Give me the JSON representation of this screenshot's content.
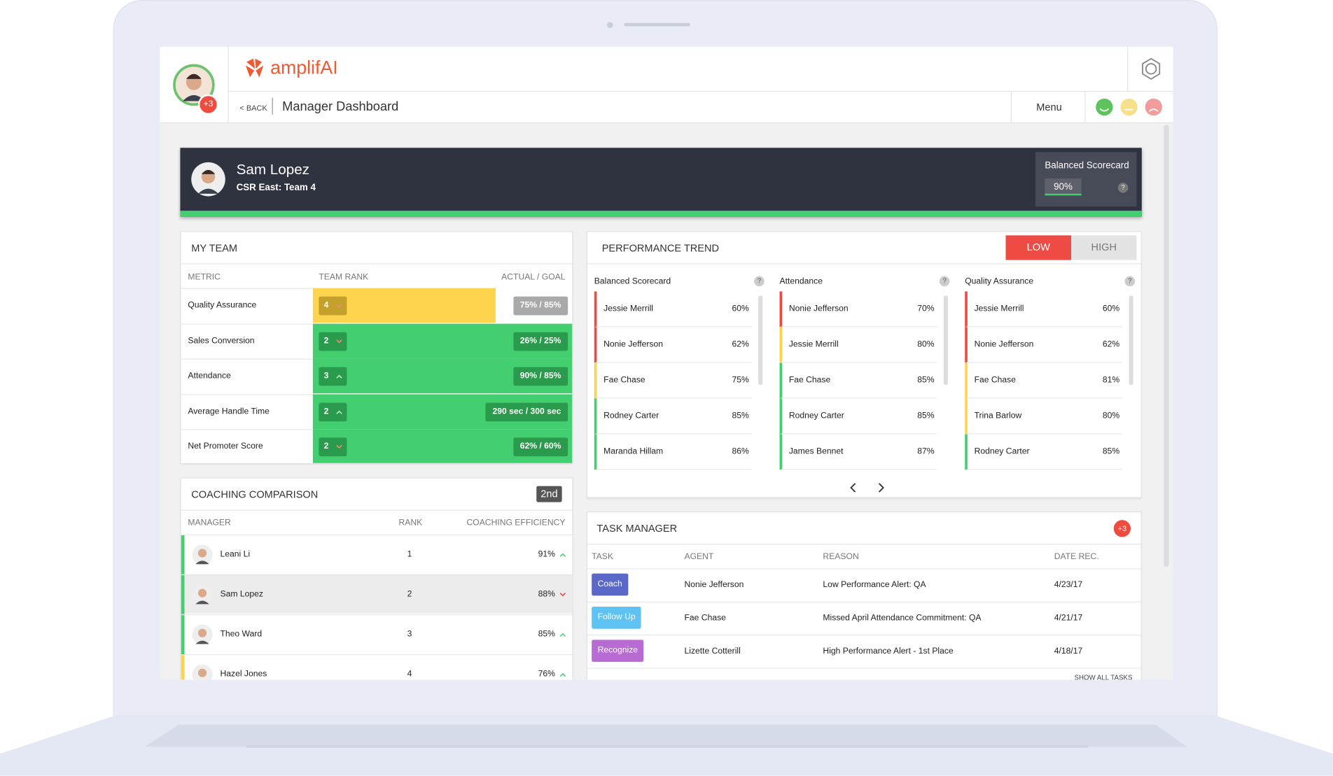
{
  "header": {
    "brand": "amplifAI",
    "badge": "+3",
    "back": "< BACK",
    "title": "Manager Dashboard",
    "menu": "Menu"
  },
  "profile": {
    "name": "Sam Lopez",
    "team": "CSR East: Team 4",
    "scorecard_label": "Balanced Scorecard",
    "scorecard_value": "90%",
    "help": "?"
  },
  "my_team": {
    "title": "MY TEAM",
    "columns": [
      "METRIC",
      "TEAM RANK",
      "ACTUAL / GOAL"
    ],
    "rows": [
      {
        "metric": "Quality Assurance",
        "rank": "4",
        "trend": "down",
        "value": "75% / 85%",
        "status": "yellow"
      },
      {
        "metric": "Sales Conversion",
        "rank": "2",
        "trend": "down",
        "value": "26% / 25%",
        "status": "green"
      },
      {
        "metric": "Attendance",
        "rank": "3",
        "trend": "up",
        "value": "90% / 85%",
        "status": "green"
      },
      {
        "metric": "Average Handle Time",
        "rank": "2",
        "trend": "up",
        "value": "290 sec / 300 sec",
        "status": "green"
      },
      {
        "metric": "Net Promoter Score",
        "rank": "2",
        "trend": "down",
        "value": "62% / 60%",
        "status": "green"
      }
    ]
  },
  "coaching": {
    "title": "COACHING COMPARISON",
    "badge": "2nd",
    "columns": [
      "MANAGER",
      "RANK",
      "COACHING EFFICIENCY"
    ],
    "rows": [
      {
        "manager": "Leani Li",
        "rank": "1",
        "efficiency": "91%",
        "trend": "up",
        "status": "green"
      },
      {
        "manager": "Sam Lopez",
        "rank": "2",
        "efficiency": "88%",
        "trend": "down",
        "status": "green"
      },
      {
        "manager": "Theo Ward",
        "rank": "3",
        "efficiency": "85%",
        "trend": "up",
        "status": "green"
      },
      {
        "manager": "Hazel Jones",
        "rank": "4",
        "efficiency": "76%",
        "trend": "up",
        "status": "yellow"
      }
    ]
  },
  "performance": {
    "title": "PERFORMANCE TREND",
    "toggle": [
      "LOW",
      "HIGH"
    ],
    "lists": [
      {
        "title": "Balanced Scorecard",
        "help": "?",
        "entries": [
          {
            "name": "Jessie Merrill",
            "value": "60%",
            "status": "red"
          },
          {
            "name": "Nonie Jefferson",
            "value": "62%",
            "status": "red"
          },
          {
            "name": "Fae Chase",
            "value": "75%",
            "status": "yellow"
          },
          {
            "name": "Rodney Carter",
            "value": "85%",
            "status": "green"
          },
          {
            "name": "Maranda Hillam",
            "value": "86%",
            "status": "green"
          }
        ]
      },
      {
        "title": "Attendance",
        "help": "?",
        "entries": [
          {
            "name": "Nonie Jefferson",
            "value": "70%",
            "status": "red"
          },
          {
            "name": "Jessie Merrill",
            "value": "80%",
            "status": "yellow"
          },
          {
            "name": "Fae Chase",
            "value": "85%",
            "status": "green"
          },
          {
            "name": "Rodney Carter",
            "value": "85%",
            "status": "green"
          },
          {
            "name": "James Bennet",
            "value": "87%",
            "status": "green"
          }
        ]
      },
      {
        "title": "Quality Assurance",
        "help": "?",
        "entries": [
          {
            "name": "Jessie Merrill",
            "value": "60%",
            "status": "red"
          },
          {
            "name": "Nonie Jefferson",
            "value": "62%",
            "status": "red"
          },
          {
            "name": "Fae Chase",
            "value": "81%",
            "status": "yellow"
          },
          {
            "name": "Trina Barlow",
            "value": "80%",
            "status": "yellow"
          },
          {
            "name": "Rodney Carter",
            "value": "85%",
            "status": "green"
          }
        ]
      }
    ]
  },
  "tasks": {
    "title": "TASK MANAGER",
    "badge": "+3",
    "columns": [
      "TASK",
      "AGENT",
      "REASON",
      "DATE REC."
    ],
    "rows": [
      {
        "task": "Coach",
        "agent": "Nonie Jefferson",
        "reason": "Low Performance Alert: QA",
        "date": "4/23/17",
        "color": "#5b68c8"
      },
      {
        "task": "Follow Up",
        "agent": "Fae Chase",
        "reason": "Missed April Attendance Commitment: QA",
        "date": "4/21/17",
        "color": "#5ec2f2"
      },
      {
        "task": "Recognize",
        "agent": "Lizette Cotterill",
        "reason": "High Performance Alert - 1st Place",
        "date": "4/18/17",
        "color": "#b86bd2"
      }
    ],
    "footer": "SHOW ALL TASKS"
  }
}
